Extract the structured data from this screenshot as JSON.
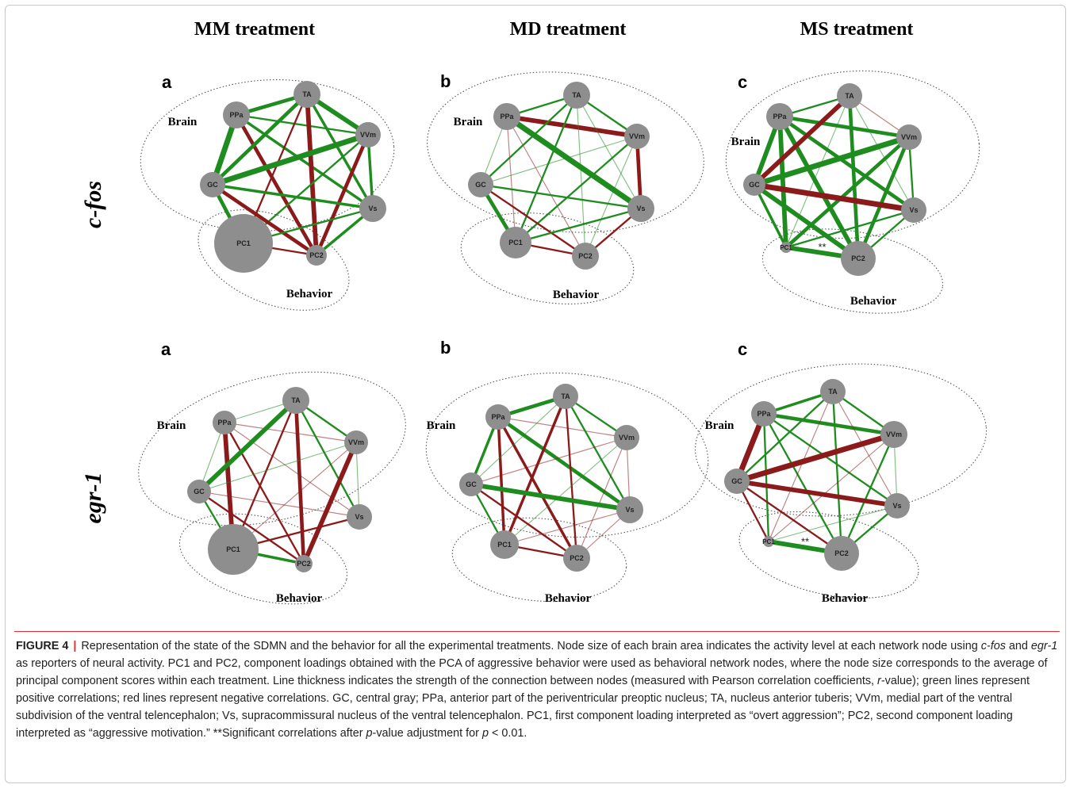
{
  "column_headers": [
    "MM treatment",
    "MD treatment",
    "MS treatment"
  ],
  "row_headers": [
    "c-fos",
    "egr-1"
  ],
  "node_labels": [
    "PPa",
    "TA",
    "VVm",
    "GC",
    "Vs",
    "PC1",
    "PC2"
  ],
  "cluster_labels": {
    "brain": "Brain",
    "behavior": "Behavior"
  },
  "significance_marker": "**",
  "colors": {
    "positive": "#1e8c1e",
    "negative": "#8b1a1a",
    "node": "#8e8e8e"
  },
  "panels": [
    {
      "letter": "a",
      "row": "c-fos",
      "treatment": "MM treatment",
      "node_sizes": {
        "PPa": 17,
        "TA": 17,
        "VVm": 16,
        "GC": 16,
        "Vs": 17,
        "PC1": 37,
        "PC2": 13
      },
      "edges": [
        {
          "from": "PPa",
          "to": "TA",
          "sign": "positive",
          "weight": 4
        },
        {
          "from": "PPa",
          "to": "VVm",
          "sign": "positive",
          "weight": 2
        },
        {
          "from": "PPa",
          "to": "GC",
          "sign": "positive",
          "weight": 6
        },
        {
          "from": "PPa",
          "to": "Vs",
          "sign": "positive",
          "weight": 3
        },
        {
          "from": "PPa",
          "to": "PC2",
          "sign": "negative",
          "weight": 4
        },
        {
          "from": "TA",
          "to": "VVm",
          "sign": "positive",
          "weight": 5
        },
        {
          "from": "TA",
          "to": "GC",
          "sign": "positive",
          "weight": 4
        },
        {
          "from": "TA",
          "to": "Vs",
          "sign": "positive",
          "weight": 3
        },
        {
          "from": "TA",
          "to": "PC1",
          "sign": "negative",
          "weight": 2
        },
        {
          "from": "TA",
          "to": "PC2",
          "sign": "negative",
          "weight": 5
        },
        {
          "from": "VVm",
          "to": "GC",
          "sign": "positive",
          "weight": 6
        },
        {
          "from": "VVm",
          "to": "Vs",
          "sign": "positive",
          "weight": 3
        },
        {
          "from": "VVm",
          "to": "PC1",
          "sign": "positive",
          "weight": 2
        },
        {
          "from": "VVm",
          "to": "PC2",
          "sign": "negative",
          "weight": 4
        },
        {
          "from": "GC",
          "to": "Vs",
          "sign": "positive",
          "weight": 3
        },
        {
          "from": "GC",
          "to": "PC1",
          "sign": "positive",
          "weight": 4
        },
        {
          "from": "GC",
          "to": "PC2",
          "sign": "negative",
          "weight": 4
        },
        {
          "from": "Vs",
          "to": "PC1",
          "sign": "positive",
          "weight": 2
        },
        {
          "from": "Vs",
          "to": "PC2",
          "sign": "positive",
          "weight": 3
        },
        {
          "from": "PC1",
          "to": "PC2",
          "sign": "negative",
          "weight": 2
        }
      ]
    },
    {
      "letter": "b",
      "row": "c-fos",
      "treatment": "MD treatment",
      "node_sizes": {
        "PPa": 17,
        "TA": 17,
        "VVm": 16,
        "GC": 16,
        "Vs": 17,
        "PC1": 20,
        "PC2": 17
      },
      "edges": [
        {
          "from": "PPa",
          "to": "TA",
          "sign": "positive",
          "weight": 2
        },
        {
          "from": "PPa",
          "to": "VVm",
          "sign": "negative",
          "weight": 5
        },
        {
          "from": "PPa",
          "to": "GC",
          "sign": "positive",
          "weight": 1
        },
        {
          "from": "PPa",
          "to": "Vs",
          "sign": "positive",
          "weight": 6
        },
        {
          "from": "PPa",
          "to": "PC1",
          "sign": "negative",
          "weight": 1
        },
        {
          "from": "PPa",
          "to": "PC2",
          "sign": "negative",
          "weight": 1
        },
        {
          "from": "TA",
          "to": "VVm",
          "sign": "positive",
          "weight": 2
        },
        {
          "from": "TA",
          "to": "GC",
          "sign": "positive",
          "weight": 2
        },
        {
          "from": "TA",
          "to": "Vs",
          "sign": "positive",
          "weight": 1
        },
        {
          "from": "TA",
          "to": "PC1",
          "sign": "positive",
          "weight": 2
        },
        {
          "from": "TA",
          "to": "PC2",
          "sign": "positive",
          "weight": 1
        },
        {
          "from": "VVm",
          "to": "GC",
          "sign": "positive",
          "weight": 1
        },
        {
          "from": "VVm",
          "to": "Vs",
          "sign": "negative",
          "weight": 4
        },
        {
          "from": "VVm",
          "to": "PC1",
          "sign": "positive",
          "weight": 2
        },
        {
          "from": "VVm",
          "to": "PC2",
          "sign": "positive",
          "weight": 1
        },
        {
          "from": "GC",
          "to": "Vs",
          "sign": "positive",
          "weight": 2
        },
        {
          "from": "GC",
          "to": "PC1",
          "sign": "positive",
          "weight": 4
        },
        {
          "from": "GC",
          "to": "PC2",
          "sign": "negative",
          "weight": 2
        },
        {
          "from": "Vs",
          "to": "PC1",
          "sign": "positive",
          "weight": 2
        },
        {
          "from": "Vs",
          "to": "PC2",
          "sign": "negative",
          "weight": 2
        },
        {
          "from": "PC1",
          "to": "PC2",
          "sign": "negative",
          "weight": 2
        }
      ]
    },
    {
      "letter": "c",
      "row": "c-fos",
      "treatment": "MS treatment",
      "node_sizes": {
        "PPa": 17,
        "TA": 16,
        "VVm": 16,
        "GC": 14,
        "Vs": 16,
        "PC1": 7,
        "PC2": 22
      },
      "edges": [
        {
          "from": "PPa",
          "to": "TA",
          "sign": "positive",
          "weight": 2
        },
        {
          "from": "PPa",
          "to": "VVm",
          "sign": "positive",
          "weight": 4
        },
        {
          "from": "PPa",
          "to": "GC",
          "sign": "positive",
          "weight": 5
        },
        {
          "from": "PPa",
          "to": "Vs",
          "sign": "positive",
          "weight": 4
        },
        {
          "from": "PPa",
          "to": "PC1",
          "sign": "positive",
          "weight": 5
        },
        {
          "from": "PPa",
          "to": "PC2",
          "sign": "positive",
          "weight": 5
        },
        {
          "from": "TA",
          "to": "VVm",
          "sign": "negative",
          "weight": 1
        },
        {
          "from": "TA",
          "to": "GC",
          "sign": "negative",
          "weight": 5
        },
        {
          "from": "TA",
          "to": "Vs",
          "sign": "positive",
          "weight": 1
        },
        {
          "from": "TA",
          "to": "PC1",
          "sign": "positive",
          "weight": 1
        },
        {
          "from": "TA",
          "to": "PC2",
          "sign": "positive",
          "weight": 4
        },
        {
          "from": "VVm",
          "to": "GC",
          "sign": "positive",
          "weight": 6
        },
        {
          "from": "VVm",
          "to": "Vs",
          "sign": "positive",
          "weight": 2
        },
        {
          "from": "VVm",
          "to": "PC1",
          "sign": "positive",
          "weight": 4
        },
        {
          "from": "VVm",
          "to": "PC2",
          "sign": "positive",
          "weight": 4
        },
        {
          "from": "GC",
          "to": "Vs",
          "sign": "negative",
          "weight": 6
        },
        {
          "from": "GC",
          "to": "PC1",
          "sign": "positive",
          "weight": 3
        },
        {
          "from": "GC",
          "to": "PC2",
          "sign": "positive",
          "weight": 5
        },
        {
          "from": "Vs",
          "to": "PC1",
          "sign": "positive",
          "weight": 2
        },
        {
          "from": "Vs",
          "to": "PC2",
          "sign": "positive",
          "weight": 2
        },
        {
          "from": "PC1",
          "to": "PC2",
          "sign": "positive",
          "weight": 5,
          "significant": true
        }
      ]
    },
    {
      "letter": "a",
      "row": "egr-1",
      "treatment": "MM treatment",
      "node_sizes": {
        "PPa": 15,
        "TA": 17,
        "VVm": 15,
        "GC": 15,
        "Vs": 16,
        "PC1": 32,
        "PC2": 11
      },
      "edges": [
        {
          "from": "PPa",
          "to": "TA",
          "sign": "positive",
          "weight": 1
        },
        {
          "from": "PPa",
          "to": "VVm",
          "sign": "negative",
          "weight": 1
        },
        {
          "from": "PPa",
          "to": "GC",
          "sign": "positive",
          "weight": 1
        },
        {
          "from": "PPa",
          "to": "Vs",
          "sign": "negative",
          "weight": 1
        },
        {
          "from": "PPa",
          "to": "PC1",
          "sign": "negative",
          "weight": 5
        },
        {
          "from": "PPa",
          "to": "PC2",
          "sign": "negative",
          "weight": 2
        },
        {
          "from": "TA",
          "to": "VVm",
          "sign": "positive",
          "weight": 2
        },
        {
          "from": "TA",
          "to": "GC",
          "sign": "positive",
          "weight": 5
        },
        {
          "from": "TA",
          "to": "Vs",
          "sign": "positive",
          "weight": 2
        },
        {
          "from": "TA",
          "to": "PC1",
          "sign": "negative",
          "weight": 2
        },
        {
          "from": "TA",
          "to": "PC2",
          "sign": "negative",
          "weight": 4
        },
        {
          "from": "VVm",
          "to": "GC",
          "sign": "positive",
          "weight": 1
        },
        {
          "from": "VVm",
          "to": "Vs",
          "sign": "positive",
          "weight": 1
        },
        {
          "from": "VVm",
          "to": "PC1",
          "sign": "negative",
          "weight": 1
        },
        {
          "from": "VVm",
          "to": "PC2",
          "sign": "negative",
          "weight": 5
        },
        {
          "from": "GC",
          "to": "Vs",
          "sign": "negative",
          "weight": 1
        },
        {
          "from": "GC",
          "to": "PC1",
          "sign": "positive",
          "weight": 2
        },
        {
          "from": "GC",
          "to": "PC2",
          "sign": "negative",
          "weight": 2
        },
        {
          "from": "Vs",
          "to": "PC1",
          "sign": "negative",
          "weight": 2
        },
        {
          "from": "PC1",
          "to": "PC2",
          "sign": "positive",
          "weight": 3
        }
      ]
    },
    {
      "letter": "b",
      "row": "egr-1",
      "treatment": "MD treatment",
      "node_sizes": {
        "PPa": 16,
        "TA": 16,
        "VVm": 16,
        "GC": 15,
        "Vs": 17,
        "PC1": 18,
        "PC2": 17
      },
      "edges": [
        {
          "from": "PPa",
          "to": "TA",
          "sign": "positive",
          "weight": 4
        },
        {
          "from": "PPa",
          "to": "VVm",
          "sign": "negative",
          "weight": 1
        },
        {
          "from": "PPa",
          "to": "GC",
          "sign": "positive",
          "weight": 3
        },
        {
          "from": "PPa",
          "to": "Vs",
          "sign": "positive",
          "weight": 4
        },
        {
          "from": "PPa",
          "to": "PC1",
          "sign": "negative",
          "weight": 3
        },
        {
          "from": "PPa",
          "to": "PC2",
          "sign": "negative",
          "weight": 3
        },
        {
          "from": "TA",
          "to": "VVm",
          "sign": "positive",
          "weight": 2
        },
        {
          "from": "TA",
          "to": "GC",
          "sign": "positive",
          "weight": 1
        },
        {
          "from": "TA",
          "to": "Vs",
          "sign": "positive",
          "weight": 2
        },
        {
          "from": "TA",
          "to": "PC1",
          "sign": "negative",
          "weight": 3
        },
        {
          "from": "TA",
          "to": "PC2",
          "sign": "negative",
          "weight": 2
        },
        {
          "from": "VVm",
          "to": "GC",
          "sign": "negative",
          "weight": 1
        },
        {
          "from": "VVm",
          "to": "Vs",
          "sign": "negative",
          "weight": 1
        },
        {
          "from": "VVm",
          "to": "PC1",
          "sign": "positive",
          "weight": 1
        },
        {
          "from": "VVm",
          "to": "PC2",
          "sign": "negative",
          "weight": 1
        },
        {
          "from": "GC",
          "to": "Vs",
          "sign": "positive",
          "weight": 5
        },
        {
          "from": "GC",
          "to": "PC1",
          "sign": "positive",
          "weight": 2
        },
        {
          "from": "GC",
          "to": "PC2",
          "sign": "negative",
          "weight": 2
        },
        {
          "from": "Vs",
          "to": "PC1",
          "sign": "negative",
          "weight": 1
        },
        {
          "from": "Vs",
          "to": "PC2",
          "sign": "negative",
          "weight": 1
        },
        {
          "from": "PC1",
          "to": "PC2",
          "sign": "negative",
          "weight": 2
        }
      ]
    },
    {
      "letter": "c",
      "row": "egr-1",
      "treatment": "MS treatment",
      "node_sizes": {
        "PPa": 16,
        "TA": 16,
        "VVm": 17,
        "GC": 16,
        "Vs": 16,
        "PC1": 7,
        "PC2": 22
      },
      "edges": [
        {
          "from": "PPa",
          "to": "TA",
          "sign": "positive",
          "weight": 3
        },
        {
          "from": "PPa",
          "to": "VVm",
          "sign": "positive",
          "weight": 4
        },
        {
          "from": "PPa",
          "to": "GC",
          "sign": "negative",
          "weight": 6
        },
        {
          "from": "PPa",
          "to": "Vs",
          "sign": "positive",
          "weight": 2
        },
        {
          "from": "PPa",
          "to": "PC1",
          "sign": "positive",
          "weight": 2
        },
        {
          "from": "PPa",
          "to": "PC2",
          "sign": "positive",
          "weight": 2
        },
        {
          "from": "TA",
          "to": "VVm",
          "sign": "positive",
          "weight": 2
        },
        {
          "from": "TA",
          "to": "GC",
          "sign": "positive",
          "weight": 2
        },
        {
          "from": "TA",
          "to": "Vs",
          "sign": "negative",
          "weight": 1
        },
        {
          "from": "TA",
          "to": "PC1",
          "sign": "negative",
          "weight": 1
        },
        {
          "from": "TA",
          "to": "PC2",
          "sign": "positive",
          "weight": 2
        },
        {
          "from": "VVm",
          "to": "GC",
          "sign": "negative",
          "weight": 6
        },
        {
          "from": "VVm",
          "to": "Vs",
          "sign": "positive",
          "weight": 1
        },
        {
          "from": "VVm",
          "to": "PC1",
          "sign": "negative",
          "weight": 1
        },
        {
          "from": "VVm",
          "to": "PC2",
          "sign": "positive",
          "weight": 2
        },
        {
          "from": "GC",
          "to": "Vs",
          "sign": "negative",
          "weight": 5
        },
        {
          "from": "GC",
          "to": "PC1",
          "sign": "negative",
          "weight": 2
        },
        {
          "from": "GC",
          "to": "PC2",
          "sign": "negative",
          "weight": 2
        },
        {
          "from": "Vs",
          "to": "PC1",
          "sign": "positive",
          "weight": 1
        },
        {
          "from": "Vs",
          "to": "PC2",
          "sign": "positive",
          "weight": 2
        },
        {
          "from": "PC1",
          "to": "PC2",
          "sign": "positive",
          "weight": 5,
          "significant": true
        }
      ]
    }
  ],
  "caption": {
    "label": "FIGURE 4",
    "separator": "|",
    "segments": [
      {
        "text": "Representation of the state of the SDMN and the behavior for all the experimental treatments. Node size of each brain area indicates the activity level at each network node using "
      },
      {
        "text": "c-fos",
        "italic": true
      },
      {
        "text": " and "
      },
      {
        "text": "egr-1",
        "italic": true
      },
      {
        "text": " as reporters of neural activity. PC1 and PC2, component loadings obtained with the PCA of aggressive behavior were used as behavioral network nodes, where the node size corresponds to the average of principal component scores within each treatment. Line thickness indicates the strength of the connection between nodes (measured with Pearson correlation coefficients, "
      },
      {
        "text": "r",
        "italic": true
      },
      {
        "text": "-value); green lines represent positive correlations; red lines represent negative correlations. GC, central gray; PPa, anterior part of the periventricular preoptic nucleus; TA, nucleus anterior tuberis; VVm, medial part of the ventral subdivision of the ventral telencephalon; Vs, supracommissural nucleus of the ventral telencephalon. PC1, first component loading interpreted as “overt aggression”; PC2, second component loading interpreted as “aggressive motivation.” **Significant correlations after "
      },
      {
        "text": "p",
        "italic": true
      },
      {
        "text": "-value adjustment for "
      },
      {
        "text": "p",
        "italic": true
      },
      {
        "text": " < 0.01."
      }
    ]
  }
}
